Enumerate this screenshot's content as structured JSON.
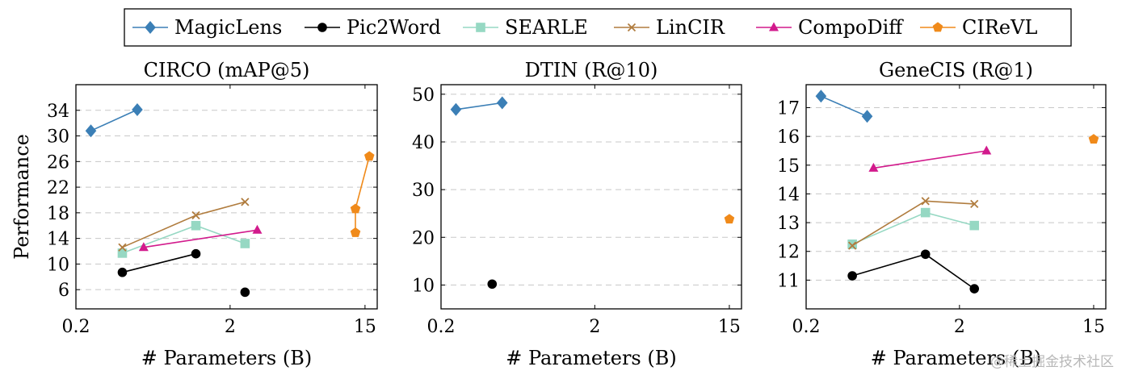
{
  "legend": [
    {
      "name": "MagicLens",
      "color": "#3b7fb6",
      "marker": "diamond"
    },
    {
      "name": "Pic2Word",
      "color": "#000000",
      "marker": "circle"
    },
    {
      "name": "SEARLE",
      "color": "#96d8c3",
      "marker": "square"
    },
    {
      "name": "LinCIR",
      "color": "#b07c3e",
      "marker": "cross"
    },
    {
      "name": "CompoDiff",
      "color": "#d21a8c",
      "marker": "triangle"
    },
    {
      "name": "CIReVL",
      "color": "#f08a1a",
      "marker": "pentagon"
    }
  ],
  "chart_data": [
    {
      "type": "line",
      "title": "CIRCO (mAP@5)",
      "xlabel": "# Parameters (B)",
      "ylabel": "Performance",
      "xscale": "log",
      "xlim": [
        0.2,
        18
      ],
      "ylim": [
        3,
        38
      ],
      "xticks": [
        0.2,
        2,
        15
      ],
      "xtick_labels": [
        "0.2",
        "2",
        "15"
      ],
      "yticks": [
        6,
        10,
        14,
        18,
        22,
        26,
        30,
        34
      ],
      "grid": "horizontal dashed",
      "series": [
        {
          "name": "MagicLens",
          "x": [
            0.25,
            0.5
          ],
          "y": [
            30.8,
            34.1
          ]
        },
        {
          "name": "Pic2Word",
          "x": [
            0.4,
            1.2
          ],
          "y": [
            8.7,
            11.6
          ]
        },
        {
          "name": "Pic2Word",
          "x": [
            2.5
          ],
          "y": [
            5.6
          ]
        },
        {
          "name": "SEARLE",
          "x": [
            0.4,
            1.2,
            2.5
          ],
          "y": [
            11.7,
            16.0,
            13.2
          ]
        },
        {
          "name": "LinCIR",
          "x": [
            0.4,
            1.2,
            2.5
          ],
          "y": [
            12.6,
            17.6,
            19.7
          ]
        },
        {
          "name": "CompoDiff",
          "x": [
            0.55,
            3.0
          ],
          "y": [
            12.6,
            15.3
          ]
        },
        {
          "name": "CIReVL",
          "x": [
            13,
            13,
            16
          ],
          "y": [
            14.9,
            18.6,
            26.8
          ]
        }
      ]
    },
    {
      "type": "line",
      "title": "DTIN (R@10)",
      "xlabel": "# Parameters (B)",
      "xscale": "log",
      "xlim": [
        0.2,
        18
      ],
      "ylim": [
        5,
        52
      ],
      "xticks": [
        0.2,
        2,
        15
      ],
      "xtick_labels": [
        "0.2",
        "2",
        "15"
      ],
      "yticks": [
        10,
        20,
        30,
        40,
        50
      ],
      "grid": "horizontal dashed",
      "series": [
        {
          "name": "MagicLens",
          "x": [
            0.25,
            0.5
          ],
          "y": [
            46.8,
            48.2
          ]
        },
        {
          "name": "Pic2Word",
          "x": [
            0.43
          ],
          "y": [
            10.2
          ]
        },
        {
          "name": "CIReVL",
          "x": [
            15
          ],
          "y": [
            23.8
          ]
        }
      ]
    },
    {
      "type": "line",
      "title": "GeneCIS (R@1)",
      "xlabel": "# Parameters (B)",
      "xscale": "log",
      "xlim": [
        0.2,
        18
      ],
      "ylim": [
        10,
        17.8
      ],
      "xticks": [
        0.2,
        2,
        15
      ],
      "xtick_labels": [
        "0.2",
        "2",
        "15"
      ],
      "yticks": [
        11,
        12,
        13,
        14,
        15,
        16,
        17
      ],
      "grid": "horizontal dashed",
      "series": [
        {
          "name": "MagicLens",
          "x": [
            0.25,
            0.5
          ],
          "y": [
            17.4,
            16.7
          ]
        },
        {
          "name": "Pic2Word",
          "x": [
            0.4,
            1.2,
            2.5
          ],
          "y": [
            11.15,
            11.9,
            10.7
          ]
        },
        {
          "name": "SEARLE",
          "x": [
            0.4,
            1.2,
            2.5
          ],
          "y": [
            12.25,
            13.35,
            12.9
          ]
        },
        {
          "name": "LinCIR",
          "x": [
            0.4,
            1.2,
            2.5
          ],
          "y": [
            12.2,
            13.75,
            13.65
          ]
        },
        {
          "name": "CompoDiff",
          "x": [
            0.55,
            3.0
          ],
          "y": [
            14.9,
            15.5
          ]
        },
        {
          "name": "CIReVL",
          "x": [
            15
          ],
          "y": [
            15.9
          ]
        }
      ]
    }
  ],
  "watermark": "@稀土掘金技术社区"
}
